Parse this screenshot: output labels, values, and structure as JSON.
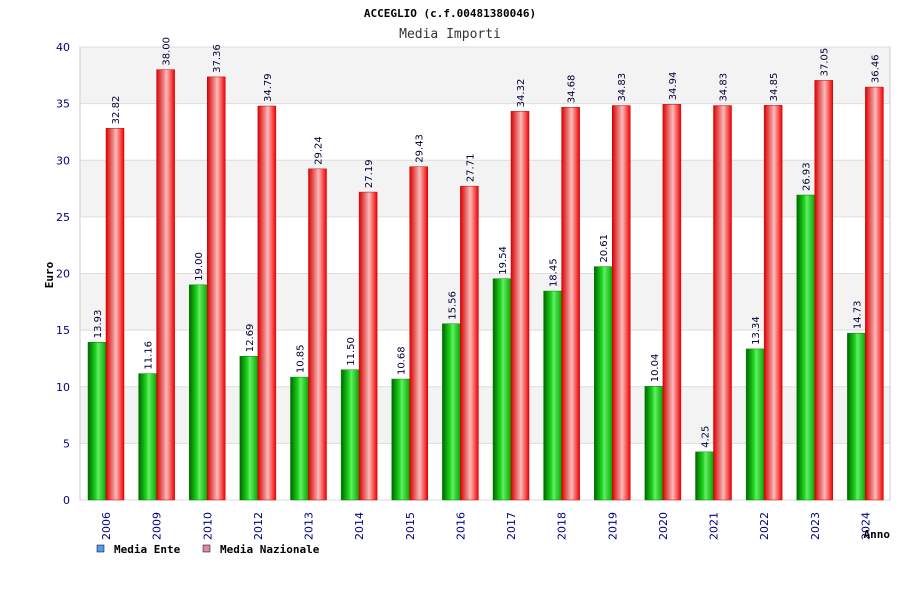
{
  "chart_data": {
    "type": "bar",
    "title": "ACCEGLIO (c.f.00481380046)",
    "subtitle": "Media Importi",
    "xlabel": "Anno",
    "ylabel": "Euro",
    "ylim": [
      0,
      40
    ],
    "yticks": [
      0,
      5,
      10,
      15,
      20,
      25,
      30,
      35,
      40
    ],
    "grid": true,
    "legend_position": "bottom-left",
    "categories": [
      "2006",
      "2009",
      "2010",
      "2012",
      "2013",
      "2014",
      "2015",
      "2016",
      "2017",
      "2018",
      "2019",
      "2020",
      "2021",
      "2022",
      "2023",
      "2024"
    ],
    "series": [
      {
        "name": "Media Ente",
        "bar_color": "#00bb00",
        "legend_color": "#5599ee",
        "values": [
          13.93,
          11.16,
          19.0,
          12.69,
          10.85,
          11.5,
          10.68,
          15.56,
          19.54,
          18.45,
          20.61,
          10.04,
          4.25,
          13.34,
          26.93,
          14.73
        ],
        "labels": [
          "13.93",
          "11.16",
          "19.00",
          "12.69",
          "10.85",
          "11.50",
          "10.68",
          "15.56",
          "19.54",
          "18.45",
          "20.61",
          "10.04",
          "4.25",
          "13.34",
          "26.93",
          "14.73"
        ]
      },
      {
        "name": "Media Nazionale",
        "bar_color": "#ee0000",
        "legend_color": "#dd88aa",
        "values": [
          32.82,
          38.0,
          37.36,
          34.79,
          29.24,
          27.19,
          29.43,
          27.71,
          34.32,
          34.68,
          34.83,
          34.94,
          34.83,
          34.85,
          37.05,
          36.46
        ],
        "labels": [
          "32.82",
          "38.00",
          "37.36",
          "34.79",
          "29.24",
          "27.19",
          "29.43",
          "27.71",
          "34.32",
          "34.68",
          "34.83",
          "34.94",
          "34.83",
          "34.85",
          "37.05",
          "36.46"
        ]
      }
    ]
  }
}
